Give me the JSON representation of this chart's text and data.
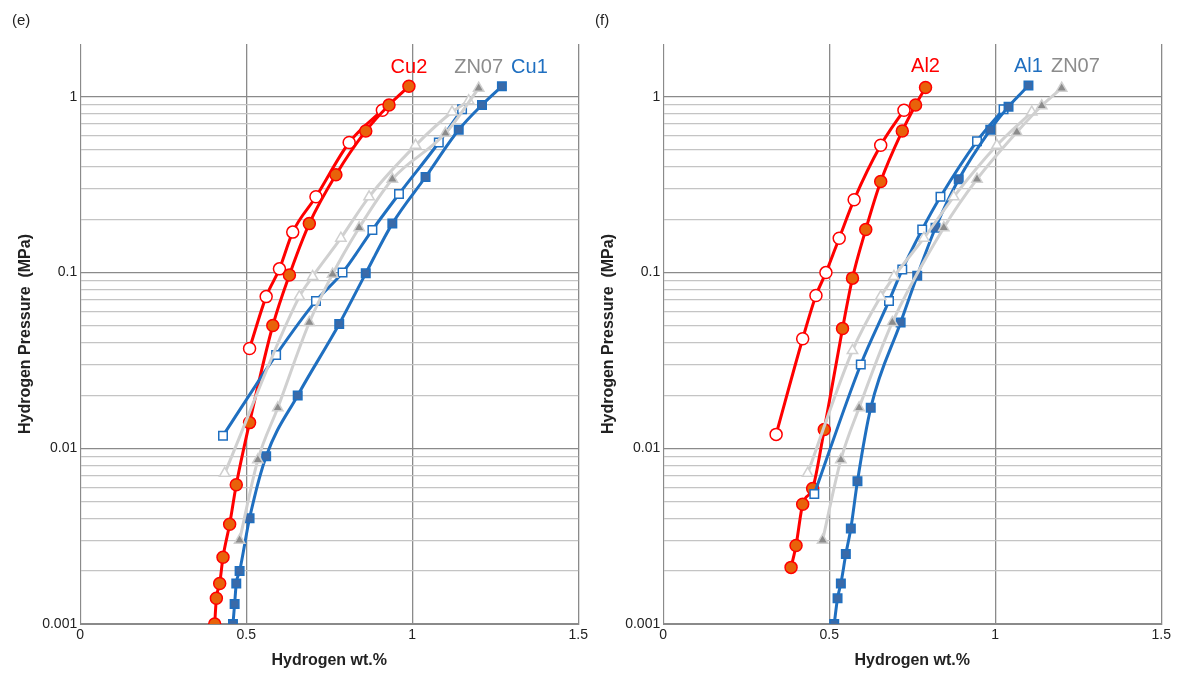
{
  "chart_data": [
    {
      "type": "line",
      "title": "(e)",
      "xlabel": "Hydrogen wt.%",
      "ylabel": "Hydrogen Pressure  (MPa)",
      "log": "y",
      "grid": true,
      "legend": false,
      "xlim": [
        0,
        1.5
      ],
      "xticks": [
        0,
        0.5,
        1,
        1.5
      ],
      "ylim": [
        0.001,
        2
      ],
      "yticks": [
        0.001,
        {
          "value": 0.002,
          "label": null
        },
        {
          "value": 0.003,
          "label": null
        },
        {
          "value": 0.004,
          "label": null
        },
        {
          "value": 0.005,
          "label": null
        },
        {
          "value": 0.006,
          "label": null
        },
        {
          "value": 0.007,
          "label": null
        },
        {
          "value": 0.008,
          "label": null
        },
        {
          "value": 0.009,
          "label": null
        },
        0.01,
        {
          "value": 0.02,
          "label": null
        },
        {
          "value": 0.03,
          "label": null
        },
        {
          "value": 0.04,
          "label": null
        },
        {
          "value": 0.05,
          "label": null
        },
        {
          "value": 0.06,
          "label": null
        },
        {
          "value": 0.07,
          "label": null
        },
        {
          "value": 0.08,
          "label": null
        },
        {
          "value": 0.09,
          "label": null
        },
        0.1,
        {
          "value": 0.2,
          "label": null
        },
        {
          "value": 0.3,
          "label": null
        },
        {
          "value": 0.4,
          "label": null
        },
        {
          "value": 0.5,
          "label": null
        },
        {
          "value": 0.6,
          "label": null
        },
        {
          "value": 0.7,
          "label": null
        },
        {
          "value": 0.8,
          "label": null
        },
        {
          "value": 0.9,
          "label": null
        },
        1
      ],
      "series": [
        {
          "name": "ZN07",
          "color": "#d0d0d0",
          "marker": "triangle",
          "x": [
            0.48,
            0.535,
            0.595,
            0.69,
            0.76,
            0.84,
            0.94,
            1.1,
            1.2
          ],
          "values": [
            0.003,
            0.0086,
            0.017,
            0.052,
            0.098,
            0.18,
            0.34,
            0.62,
            1.12
          ],
          "colors": [
            "#8c8c8c",
            "#8c8c8c",
            "#8c8c8c",
            "#8c8c8c",
            "#8c8c8c",
            "#8c8c8c",
            "#8c8c8c",
            "#8c8c8c",
            "#8c8c8c"
          ]
        },
        {
          "color": "#d0d0d0",
          "marker": "triangle",
          "x": [
            0.435,
            0.66,
            0.7,
            0.785,
            0.87,
            1.01,
            1.12,
            1.17
          ],
          "values": [
            0.0072,
            0.073,
            0.095,
            0.157,
            0.27,
            0.53,
            0.82,
            0.95
          ],
          "colors": [
            "#ffffff",
            "#ffffff",
            "#ffffff",
            "#ffffff",
            "#ffffff",
            "#ffffff",
            "#ffffff",
            "#ffffff"
          ]
        },
        {
          "name": "Cu1",
          "color": "#1f6fc0",
          "marker": "square",
          "x": [
            0.46,
            0.465,
            0.47,
            0.48,
            0.51,
            0.56,
            0.655,
            0.78,
            0.86,
            0.94,
            1.04,
            1.14,
            1.21,
            1.27
          ],
          "values": [
            0.001,
            0.0013,
            0.0017,
            0.002,
            0.004,
            0.009,
            0.02,
            0.051,
            0.099,
            0.19,
            0.35,
            0.65,
            0.9,
            1.15
          ],
          "colors": [
            "#3a6aa8",
            "#3a6aa8",
            "#3a6aa8",
            "#3a6aa8",
            "#3a6aa8",
            "#3a6aa8",
            "#3a6aa8",
            "#3a6aa8",
            "#3a6aa8",
            "#3a6aa8",
            "#3a6aa8",
            "#3a6aa8",
            "#3a6aa8",
            "#3a6aa8"
          ]
        },
        {
          "color": "#1f6fc0",
          "marker": "square",
          "x": [
            0.43,
            0.59,
            0.71,
            0.79,
            0.88,
            0.96,
            1.08,
            1.15
          ],
          "values": [
            0.0118,
            0.034,
            0.069,
            0.1,
            0.175,
            0.28,
            0.55,
            0.85
          ],
          "colors": [
            "#ffffff",
            "#ffffff",
            "#ffffff",
            "#ffffff",
            "#ffffff",
            "#ffffff",
            "#ffffff",
            "#ffffff"
          ]
        },
        {
          "name": "Cu2",
          "color": "#ff0000",
          "marker": "circle",
          "x": [
            0.405,
            0.41,
            0.42,
            0.43,
            0.45,
            0.47,
            0.51,
            0.58,
            0.63,
            0.69,
            0.77,
            0.86,
            0.93,
            0.99
          ],
          "values": [
            0.001,
            0.0014,
            0.0017,
            0.0024,
            0.0037,
            0.0062,
            0.014,
            0.05,
            0.097,
            0.19,
            0.36,
            0.64,
            0.9,
            1.15
          ],
          "colors": [
            "#e8620a",
            "#e8620a",
            "#e8620a",
            "#e8620a",
            "#e8620a",
            "#e8620a",
            "#e8620a",
            "#e8620a",
            "#e8620a",
            "#e8620a",
            "#e8620a",
            "#e8620a",
            "#e8620a",
            "#e8620a"
          ]
        },
        {
          "color": "#ff0000",
          "marker": "circle",
          "x": [
            0.51,
            0.56,
            0.6,
            0.64,
            0.71,
            0.81,
            0.91
          ],
          "values": [
            0.037,
            0.073,
            0.105,
            0.17,
            0.27,
            0.55,
            0.84
          ],
          "colors": [
            "#ffffff",
            "#ffffff",
            "#ffffff",
            "#ffffff",
            "#ffffff",
            "#ffffff",
            "#ffffff"
          ]
        }
      ]
    },
    {
      "type": "line",
      "title": "(f)",
      "xlabel": "Hydrogen wt.%",
      "ylabel": "Hydrogen Pressure  (MPa)",
      "log": "y",
      "grid": true,
      "legend": false,
      "xlim": [
        0,
        1.5
      ],
      "xticks": [
        0,
        0.5,
        1,
        1.5
      ],
      "ylim": [
        0.001,
        2
      ],
      "yticks": [
        0.001,
        {
          "value": 0.002,
          "label": null
        },
        {
          "value": 0.003,
          "label": null
        },
        {
          "value": 0.004,
          "label": null
        },
        {
          "value": 0.005,
          "label": null
        },
        {
          "value": 0.006,
          "label": null
        },
        {
          "value": 0.007,
          "label": null
        },
        {
          "value": 0.008,
          "label": null
        },
        {
          "value": 0.009,
          "label": null
        },
        0.01,
        {
          "value": 0.02,
          "label": null
        },
        {
          "value": 0.03,
          "label": null
        },
        {
          "value": 0.04,
          "label": null
        },
        {
          "value": 0.05,
          "label": null
        },
        {
          "value": 0.06,
          "label": null
        },
        {
          "value": 0.07,
          "label": null
        },
        {
          "value": 0.08,
          "label": null
        },
        {
          "value": 0.09,
          "label": null
        },
        0.1,
        {
          "value": 0.2,
          "label": null
        },
        {
          "value": 0.3,
          "label": null
        },
        {
          "value": 0.4,
          "label": null
        },
        {
          "value": 0.5,
          "label": null
        },
        {
          "value": 0.6,
          "label": null
        },
        {
          "value": 0.7,
          "label": null
        },
        {
          "value": 0.8,
          "label": null
        },
        {
          "value": 0.9,
          "label": null
        },
        1
      ],
      "series": [
        {
          "name": "ZN07",
          "color": "#d0d0d0",
          "marker": "triangle",
          "x": [
            0.48,
            0.535,
            0.59,
            0.69,
            0.845,
            0.945,
            1.065,
            1.14,
            1.2
          ],
          "values": [
            0.003,
            0.0086,
            0.017,
            0.052,
            0.18,
            0.34,
            0.63,
            0.89,
            1.12
          ],
          "colors": [
            "#8c8c8c",
            "#8c8c8c",
            "#8c8c8c",
            "#8c8c8c",
            "#8c8c8c",
            "#8c8c8c",
            "#8c8c8c",
            "#8c8c8c",
            "#8c8c8c"
          ]
        },
        {
          "color": "#d0d0d0",
          "marker": "triangle",
          "x": [
            0.435,
            0.57,
            0.655,
            0.695,
            0.785,
            0.875,
            1.005,
            1.11
          ],
          "values": [
            0.0072,
            0.036,
            0.073,
            0.095,
            0.157,
            0.27,
            0.53,
            0.82
          ],
          "colors": [
            "#ffffff",
            "#ffffff",
            "#ffffff",
            "#ffffff",
            "#ffffff",
            "#ffffff",
            "#ffffff",
            "#ffffff"
          ]
        },
        {
          "name": "Al1",
          "color": "#1f6fc0",
          "marker": "square",
          "x": [
            0.515,
            0.525,
            0.535,
            0.55,
            0.565,
            0.585,
            0.625,
            0.715,
            0.765,
            0.82,
            0.89,
            0.985,
            1.04,
            1.1
          ],
          "values": [
            0.001,
            0.0014,
            0.0017,
            0.0025,
            0.0035,
            0.0065,
            0.017,
            0.052,
            0.096,
            0.18,
            0.34,
            0.65,
            0.88,
            1.16
          ],
          "colors": [
            "#3a6aa8",
            "#3a6aa8",
            "#3a6aa8",
            "#3a6aa8",
            "#3a6aa8",
            "#3a6aa8",
            "#3a6aa8",
            "#3a6aa8",
            "#3a6aa8",
            "#3a6aa8",
            "#3a6aa8",
            "#3a6aa8",
            "#3a6aa8",
            "#3a6aa8"
          ]
        },
        {
          "color": "#1f6fc0",
          "marker": "square",
          "x": [
            0.455,
            0.595,
            0.68,
            0.72,
            0.78,
            0.835,
            0.945,
            1.025
          ],
          "values": [
            0.0055,
            0.03,
            0.069,
            0.104,
            0.176,
            0.27,
            0.56,
            0.85
          ],
          "colors": [
            "#ffffff",
            "#ffffff",
            "#ffffff",
            "#ffffff",
            "#ffffff",
            "#ffffff",
            "#ffffff",
            "#ffffff"
          ]
        },
        {
          "name": "Al2",
          "color": "#ff0000",
          "marker": "circle",
          "x": [
            0.385,
            0.4,
            0.42,
            0.45,
            0.485,
            0.54,
            0.57,
            0.61,
            0.655,
            0.72,
            0.76,
            0.79
          ],
          "values": [
            0.0021,
            0.0028,
            0.0048,
            0.0059,
            0.0128,
            0.048,
            0.093,
            0.176,
            0.33,
            0.64,
            0.9,
            1.13
          ],
          "colors": [
            "#e8620a",
            "#e8620a",
            "#e8620a",
            "#e8620a",
            "#e8620a",
            "#e8620a",
            "#e8620a",
            "#e8620a",
            "#e8620a",
            "#e8620a",
            "#e8620a",
            "#e8620a"
          ]
        },
        {
          "color": "#ff0000",
          "marker": "circle",
          "x": [
            0.34,
            0.42,
            0.46,
            0.49,
            0.53,
            0.575,
            0.655,
            0.725
          ],
          "values": [
            0.012,
            0.042,
            0.074,
            0.1,
            0.157,
            0.26,
            0.53,
            0.84
          ],
          "colors": [
            "#ffffff",
            "#ffffff",
            "#ffffff",
            "#ffffff",
            "#ffffff",
            "#ffffff",
            "#ffffff",
            "#ffffff"
          ]
        }
      ]
    }
  ]
}
